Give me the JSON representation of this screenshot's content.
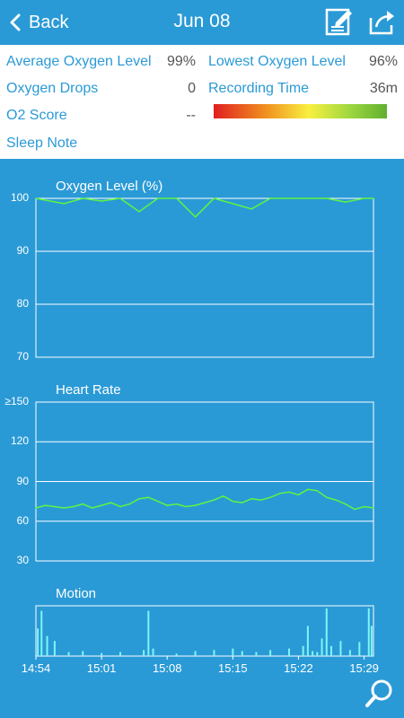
{
  "header": {
    "back_label": "Back",
    "title": "Jun 08"
  },
  "summary": {
    "avg_oxygen_label": "Average Oxygen Level",
    "avg_oxygen_value": "99%",
    "lowest_oxygen_label": "Lowest Oxygen Level",
    "lowest_oxygen_value": "96%",
    "oxygen_drops_label": "Oxygen Drops",
    "oxygen_drops_value": "0",
    "recording_time_label": "Recording Time",
    "recording_time_value": "36m",
    "o2_score_label": "O2 Score",
    "o2_score_value": "--",
    "sleep_note_label": "Sleep Note"
  },
  "colors": {
    "background": "#2a9ad6",
    "line": "#5ef542",
    "motion": "#7ef5f5",
    "accent": "#2a9ad6"
  },
  "icons": {
    "back": "chevron-left-icon",
    "note": "edit-note-icon",
    "share": "share-icon",
    "zoom": "search-zoom-icon"
  },
  "chart_data": [
    {
      "type": "line",
      "title": "Oxygen Level (%)",
      "ylim": [
        70,
        100
      ],
      "yticks": [
        "100",
        "90",
        "80",
        "70"
      ],
      "x_minutes": [
        0,
        3,
        5,
        7,
        9,
        11,
        13,
        15,
        17,
        19,
        21,
        23,
        25,
        27,
        29,
        31,
        33,
        35,
        36
      ],
      "values": [
        100,
        99,
        100,
        99.5,
        100,
        97.5,
        100,
        100,
        96.5,
        100,
        99,
        98,
        100,
        100,
        100,
        100,
        99.3,
        100,
        100
      ]
    },
    {
      "type": "line",
      "title": "Heart Rate",
      "ylim": [
        30,
        150
      ],
      "yticks": [
        "≥150",
        "120",
        "90",
        "60",
        "30"
      ],
      "x_minutes": [
        0,
        1,
        2,
        3,
        4,
        5,
        6,
        7,
        8,
        9,
        10,
        11,
        12,
        13,
        14,
        15,
        16,
        17,
        18,
        19,
        20,
        21,
        22,
        23,
        24,
        25,
        26,
        27,
        28,
        29,
        30,
        31,
        32,
        33,
        34,
        35,
        36
      ],
      "values": [
        70,
        72,
        71,
        70,
        71,
        73,
        70,
        72,
        74,
        71,
        73,
        77,
        78,
        75,
        72,
        73,
        71,
        72,
        74,
        76,
        79,
        75,
        74,
        77,
        76,
        78,
        81,
        82,
        80,
        84,
        83,
        78,
        76,
        73,
        69,
        71,
        70
      ]
    },
    {
      "type": "bar",
      "title": "Motion",
      "x_minutes": [
        0.2,
        0.6,
        1.2,
        2.0,
        3.5,
        5.0,
        7.0,
        9.0,
        11.5,
        12.0,
        12.5,
        15.0,
        17.0,
        19.0,
        21.0,
        22.0,
        23.5,
        25.0,
        27.0,
        28.5,
        29.0,
        29.5,
        30.0,
        30.5,
        31.0,
        31.5,
        32.5,
        33.5,
        34.5,
        35.5,
        35.8
      ],
      "values": [
        0.55,
        0.9,
        0.4,
        0.3,
        0.08,
        0.1,
        0.06,
        0.08,
        0.12,
        0.9,
        0.15,
        0.05,
        0.1,
        0.12,
        0.15,
        0.1,
        0.08,
        0.12,
        0.15,
        0.2,
        0.6,
        0.1,
        0.08,
        0.35,
        0.95,
        0.2,
        0.3,
        0.12,
        0.28,
        0.95,
        0.6
      ]
    }
  ],
  "x_axis": {
    "start_minute": 0,
    "end_minute": 36,
    "ticks": [
      {
        "label": "14:54",
        "minute": 0
      },
      {
        "label": "15:01",
        "minute": 7
      },
      {
        "label": "15:08",
        "minute": 14
      },
      {
        "label": "15:15",
        "minute": 21
      },
      {
        "label": "15:22",
        "minute": 28
      },
      {
        "label": "15:29",
        "minute": 35
      }
    ]
  }
}
